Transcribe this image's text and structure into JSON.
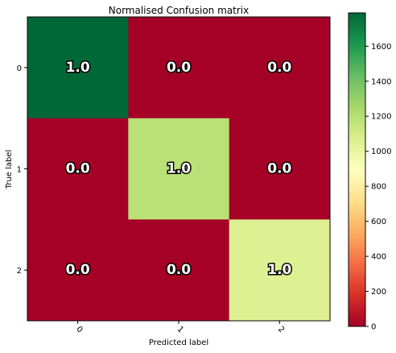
{
  "chart_data": {
    "type": "heatmap",
    "title": "Normalised Confusion matrix",
    "xlabel": "Predicted label",
    "ylabel": "True label",
    "x_categories": [
      "0",
      "1",
      "2"
    ],
    "y_categories": [
      "0",
      "1",
      "2"
    ],
    "cell_labels": [
      [
        "1.0",
        "0.0",
        "0.0"
      ],
      [
        "0.0",
        "1.0",
        "0.0"
      ],
      [
        "0.0",
        "0.0",
        "1.0"
      ]
    ],
    "color_values": [
      [
        1790,
        0,
        0
      ],
      [
        0,
        1185,
        0
      ],
      [
        0,
        0,
        1050
      ]
    ],
    "colorbar": {
      "range": [
        0,
        1790
      ],
      "ticks": [
        "0",
        "200",
        "400",
        "600",
        "800",
        "1000",
        "1200",
        "1400",
        "1600"
      ],
      "colormap": "RdYlGn"
    },
    "x_tick_rotation": "45",
    "grid": false
  }
}
